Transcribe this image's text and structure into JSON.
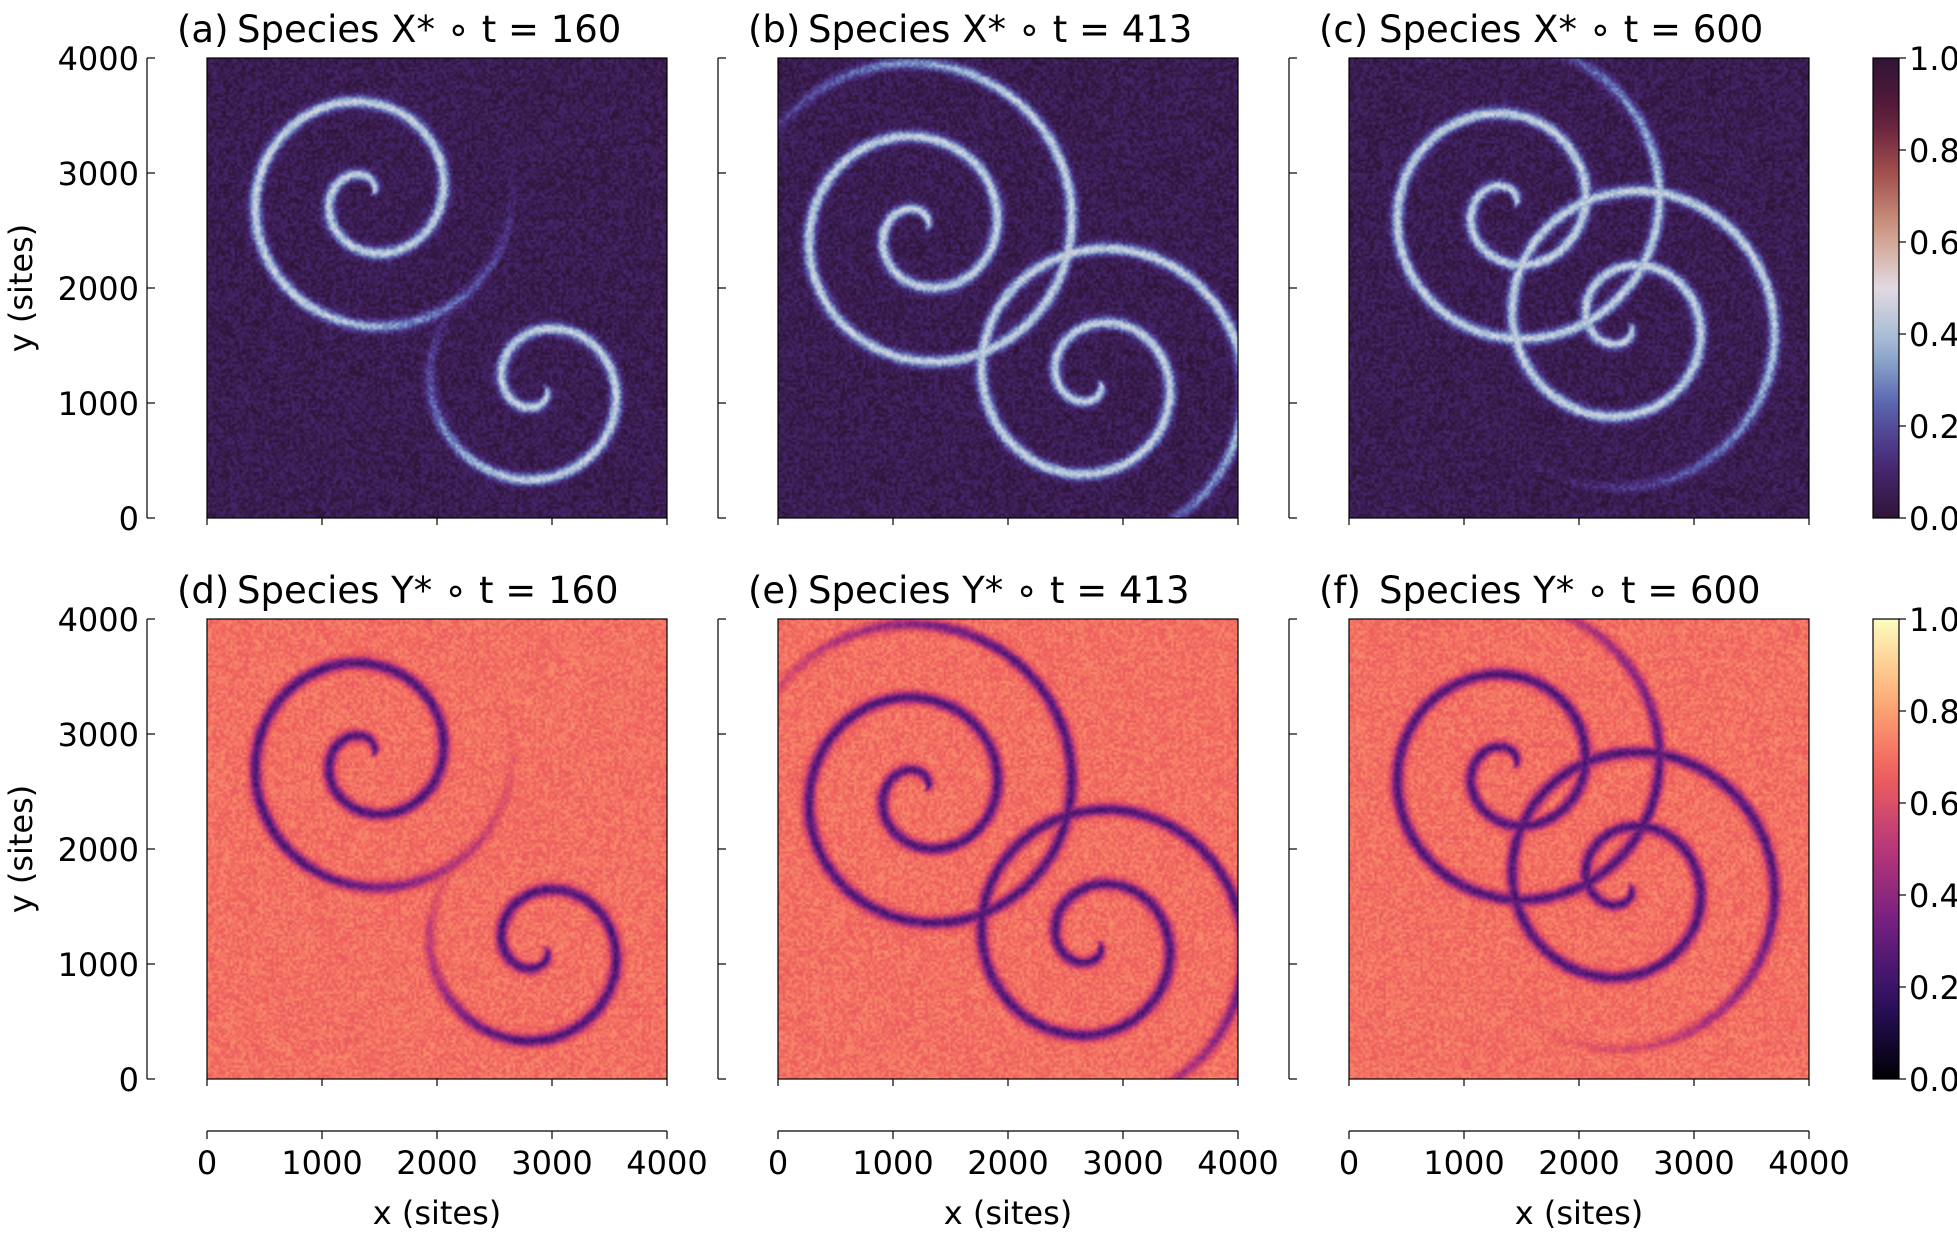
{
  "chart_data": [
    {
      "type": "heatmap",
      "panel_label": "(a)",
      "title": "Species X* ∘ t = 160",
      "species": "X*",
      "t": 160,
      "ylabel": "y (sites)",
      "xlim": [
        0,
        4000
      ],
      "ylim": [
        0,
        4000
      ],
      "yticks": [
        "0",
        "1000",
        "2000",
        "3000",
        "4000"
      ],
      "colormap": "twilight_shifted",
      "clim": [
        0.0,
        1.0
      ],
      "background_value": 0.05,
      "front_value": 0.45,
      "spirals": [
        {
          "x": 1400,
          "y": 2800,
          "handedness": 1,
          "arms": 1,
          "rmax": 1300
        },
        {
          "x": 2900,
          "y": 1150,
          "handedness": -1,
          "arms": 1,
          "rmax": 1050
        }
      ]
    },
    {
      "type": "heatmap",
      "panel_label": "(b)",
      "title": "Species X* ∘ t = 413",
      "species": "X*",
      "t": 413,
      "xlim": [
        0,
        4000
      ],
      "ylim": [
        0,
        4000
      ],
      "colormap": "twilight_shifted",
      "clim": [
        0.0,
        1.0
      ],
      "background_value": 0.05,
      "front_value": 0.45,
      "spirals": [
        {
          "x": 1250,
          "y": 2500,
          "handedness": 1,
          "arms": 1,
          "rmax": 1600
        },
        {
          "x": 2750,
          "y": 1200,
          "handedness": -1,
          "arms": 1,
          "rmax": 1500
        }
      ]
    },
    {
      "type": "heatmap",
      "panel_label": "(c)",
      "title": "Species X* ∘ t = 600",
      "species": "X*",
      "t": 600,
      "xlim": [
        0,
        4000
      ],
      "ylim": [
        0,
        4000
      ],
      "colormap": "twilight_shifted",
      "clim": [
        0.0,
        1.0
      ],
      "clabel_ticks": [
        "0.0",
        "0.2",
        "0.4",
        "0.6",
        "0.8",
        "1.0"
      ],
      "background_value": 0.05,
      "front_value": 0.45,
      "spirals": [
        {
          "x": 1400,
          "y": 2700,
          "handedness": 1,
          "arms": 1,
          "rmax": 1500
        },
        {
          "x": 2400,
          "y": 1700,
          "handedness": -1,
          "arms": 1,
          "rmax": 1500
        }
      ]
    },
    {
      "type": "heatmap",
      "panel_label": "(d)",
      "title": "Species Y* ∘ t = 160",
      "species": "Y*",
      "t": 160,
      "xlabel": "x (sites)",
      "ylabel": "y (sites)",
      "xlim": [
        0,
        4000
      ],
      "ylim": [
        0,
        4000
      ],
      "xticks": [
        "0",
        "1000",
        "2000",
        "3000",
        "4000"
      ],
      "yticks": [
        "0",
        "1000",
        "2000",
        "3000",
        "4000"
      ],
      "colormap": "magma",
      "clim": [
        0.0,
        1.0
      ],
      "background_value": 0.7,
      "front_value": 0.25,
      "spirals": [
        {
          "x": 1400,
          "y": 2800,
          "handedness": 1,
          "arms": 1,
          "rmax": 1300
        },
        {
          "x": 2900,
          "y": 1150,
          "handedness": -1,
          "arms": 1,
          "rmax": 1050
        }
      ]
    },
    {
      "type": "heatmap",
      "panel_label": "(e)",
      "title": "Species Y* ∘ t = 413",
      "species": "Y*",
      "t": 413,
      "xlabel": "x (sites)",
      "xlim": [
        0,
        4000
      ],
      "ylim": [
        0,
        4000
      ],
      "xticks": [
        "0",
        "1000",
        "2000",
        "3000",
        "4000"
      ],
      "colormap": "magma",
      "clim": [
        0.0,
        1.0
      ],
      "background_value": 0.7,
      "front_value": 0.25,
      "spirals": [
        {
          "x": 1250,
          "y": 2500,
          "handedness": 1,
          "arms": 1,
          "rmax": 1600
        },
        {
          "x": 2750,
          "y": 1200,
          "handedness": -1,
          "arms": 1,
          "rmax": 1500
        }
      ]
    },
    {
      "type": "heatmap",
      "panel_label": "(f)",
      "title": "Species Y* ∘ t = 600",
      "species": "Y*",
      "t": 600,
      "xlabel": "x (sites)",
      "xlim": [
        0,
        4000
      ],
      "ylim": [
        0,
        4000
      ],
      "xticks": [
        "0",
        "1000",
        "2000",
        "3000",
        "4000"
      ],
      "colormap": "magma",
      "clim": [
        0.0,
        1.0
      ],
      "clabel_ticks": [
        "0.0",
        "0.2",
        "0.4",
        "0.6",
        "0.8",
        "1.0"
      ],
      "background_value": 0.7,
      "front_value": 0.25,
      "spirals": [
        {
          "x": 1400,
          "y": 2700,
          "handedness": 1,
          "arms": 1,
          "rmax": 1500
        },
        {
          "x": 2400,
          "y": 1700,
          "handedness": -1,
          "arms": 1,
          "rmax": 1500
        }
      ]
    }
  ],
  "colors": {
    "twilight_shifted": [
      "#2f1436",
      "#4a2a7a",
      "#5b66b0",
      "#9cb8d3",
      "#e2d9e2",
      "#cf9b84",
      "#a24f4e",
      "#5c1b3a",
      "#2f1436"
    ],
    "magma": [
      "#000004",
      "#2c115f",
      "#721f81",
      "#b73779",
      "#f1605d",
      "#feb078",
      "#fcfdbf"
    ]
  }
}
